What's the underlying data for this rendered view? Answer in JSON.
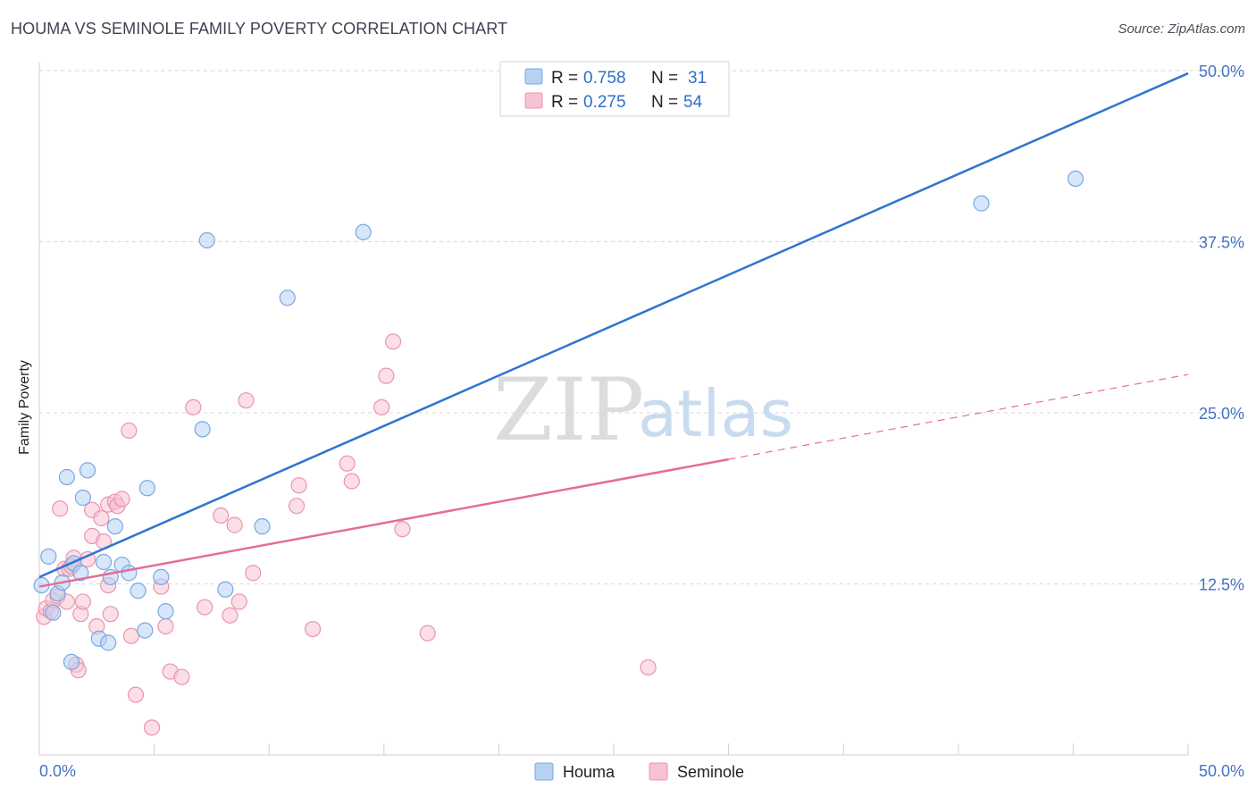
{
  "title": "HOUMA VS SEMINOLE FAMILY POVERTY CORRELATION CHART",
  "source": "Source: ZipAtlas.com",
  "watermark": {
    "zip": "ZIP",
    "atlas": "atlas"
  },
  "colors": {
    "houma_fill": "#b7d1f3",
    "houma_stroke": "#7aa8e0",
    "houma_line": "#2f74d0",
    "seminole_fill": "#f7c2d2",
    "seminole_stroke": "#ea94b0",
    "seminole_line": "#e56d96",
    "grid": "#d7d7d7",
    "axis_text": "#4472c4"
  },
  "legend": {
    "houma": {
      "r_label": "R =",
      "r_value": "0.758",
      "n_label": "N =",
      "n_value": "31"
    },
    "seminole": {
      "r_label": "R =",
      "r_value": "0.275",
      "n_label": "N =",
      "n_value": "54"
    }
  },
  "bottom_legend": {
    "houma": "Houma",
    "seminole": "Seminole"
  },
  "chart_data": {
    "type": "scatter",
    "title": "HOUMA VS SEMINOLE FAMILY POVERTY CORRELATION CHART",
    "xlabel": "",
    "ylabel": "Family Poverty",
    "xlim": [
      0,
      50
    ],
    "ylim": [
      0,
      50
    ],
    "x_tick_labels": [
      "0.0%",
      "50.0%"
    ],
    "y_ticks": [
      12.5,
      25.0,
      37.5,
      50.0
    ],
    "y_tick_labels": [
      "12.5%",
      "25.0%",
      "37.5%",
      "50.0%"
    ],
    "series": [
      {
        "name": "Houma",
        "r": 0.758,
        "n": 31,
        "trend": {
          "x0": 0,
          "y0": 13.0,
          "x1": 50,
          "y1": 49.8,
          "dashed_from": null
        },
        "points": [
          [
            0.1,
            12.4
          ],
          [
            0.4,
            14.5
          ],
          [
            0.6,
            10.4
          ],
          [
            0.8,
            11.8
          ],
          [
            1.0,
            12.6
          ],
          [
            1.2,
            20.3
          ],
          [
            1.4,
            6.8
          ],
          [
            1.5,
            14.0
          ],
          [
            1.8,
            13.3
          ],
          [
            1.9,
            18.8
          ],
          [
            2.1,
            20.8
          ],
          [
            2.6,
            8.5
          ],
          [
            2.8,
            14.1
          ],
          [
            3.0,
            8.2
          ],
          [
            3.1,
            13.0
          ],
          [
            3.3,
            16.7
          ],
          [
            3.6,
            13.9
          ],
          [
            3.9,
            13.3
          ],
          [
            4.3,
            12.0
          ],
          [
            4.6,
            9.1
          ],
          [
            4.7,
            19.5
          ],
          [
            5.3,
            13.0
          ],
          [
            5.5,
            10.5
          ],
          [
            7.1,
            23.8
          ],
          [
            7.3,
            37.6
          ],
          [
            8.1,
            12.1
          ],
          [
            9.7,
            16.7
          ],
          [
            10.8,
            33.4
          ],
          [
            14.1,
            38.2
          ],
          [
            41.0,
            40.3
          ],
          [
            45.1,
            42.1
          ]
        ]
      },
      {
        "name": "Seminole",
        "r": 0.275,
        "n": 54,
        "trend": {
          "x0": 0,
          "y0": 12.3,
          "x1": 50,
          "y1": 27.8,
          "dashed_from": 30
        },
        "points": [
          [
            0.2,
            10.1
          ],
          [
            0.3,
            10.7
          ],
          [
            0.5,
            10.5
          ],
          [
            0.6,
            11.3
          ],
          [
            0.8,
            11.6
          ],
          [
            0.9,
            18.0
          ],
          [
            1.1,
            13.6
          ],
          [
            1.2,
            11.2
          ],
          [
            1.3,
            13.6
          ],
          [
            1.5,
            14.4
          ],
          [
            1.6,
            6.6
          ],
          [
            1.7,
            6.2
          ],
          [
            1.8,
            10.3
          ],
          [
            1.9,
            11.2
          ],
          [
            2.1,
            14.3
          ],
          [
            2.3,
            17.9
          ],
          [
            2.3,
            16.0
          ],
          [
            2.5,
            9.4
          ],
          [
            2.7,
            17.3
          ],
          [
            2.8,
            15.6
          ],
          [
            3.0,
            12.4
          ],
          [
            3.0,
            18.3
          ],
          [
            3.1,
            10.3
          ],
          [
            3.3,
            18.5
          ],
          [
            3.4,
            18.2
          ],
          [
            3.6,
            18.7
          ],
          [
            3.9,
            23.7
          ],
          [
            4.0,
            8.7
          ],
          [
            4.2,
            4.4
          ],
          [
            4.9,
            2.0
          ],
          [
            5.3,
            12.3
          ],
          [
            5.5,
            9.4
          ],
          [
            5.7,
            6.1
          ],
          [
            6.2,
            5.7
          ],
          [
            6.7,
            25.4
          ],
          [
            7.2,
            10.8
          ],
          [
            7.9,
            17.5
          ],
          [
            8.3,
            10.2
          ],
          [
            8.5,
            16.8
          ],
          [
            8.7,
            11.2
          ],
          [
            9.0,
            25.9
          ],
          [
            9.3,
            13.3
          ],
          [
            11.2,
            18.2
          ],
          [
            11.3,
            19.7
          ],
          [
            11.9,
            9.2
          ],
          [
            13.4,
            21.3
          ],
          [
            13.6,
            20.0
          ],
          [
            14.9,
            25.4
          ],
          [
            15.1,
            27.7
          ],
          [
            15.4,
            30.2
          ],
          [
            15.8,
            16.5
          ],
          [
            16.9,
            8.9
          ],
          [
            26.5,
            6.4
          ],
          [
            1.4,
            13.8
          ]
        ]
      }
    ]
  }
}
